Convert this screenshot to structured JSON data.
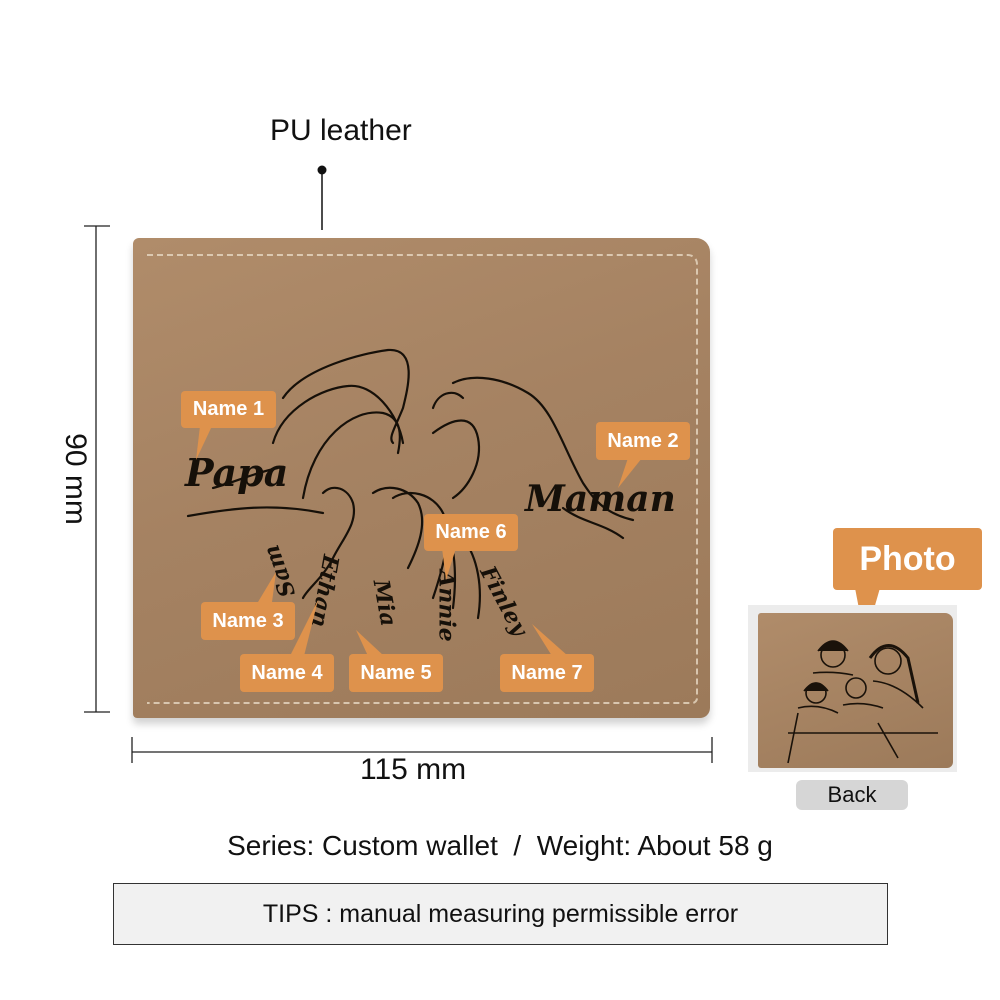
{
  "material_label": "PU leather",
  "height_label": "90 mm",
  "width_label": "115 mm",
  "engraving_names": {
    "papa": "Papa",
    "maman": "Maman",
    "sam": "Sam",
    "ethan": "Ethan",
    "mia": "Mia",
    "annie": "Annie",
    "finley": "Finley"
  },
  "callouts": [
    "Name 1",
    "Name 2",
    "Name 3",
    "Name 4",
    "Name 5",
    "Name 6",
    "Name 7"
  ],
  "photo_callout": "Photo",
  "back_button": "Back",
  "specs": "Series: Custom wallet  /  Weight: About 58 g",
  "tips": "TIPS : manual measuring permissible error",
  "colors": {
    "callout": "#de924c",
    "leather": "#a58262",
    "engraving": "#161009"
  }
}
